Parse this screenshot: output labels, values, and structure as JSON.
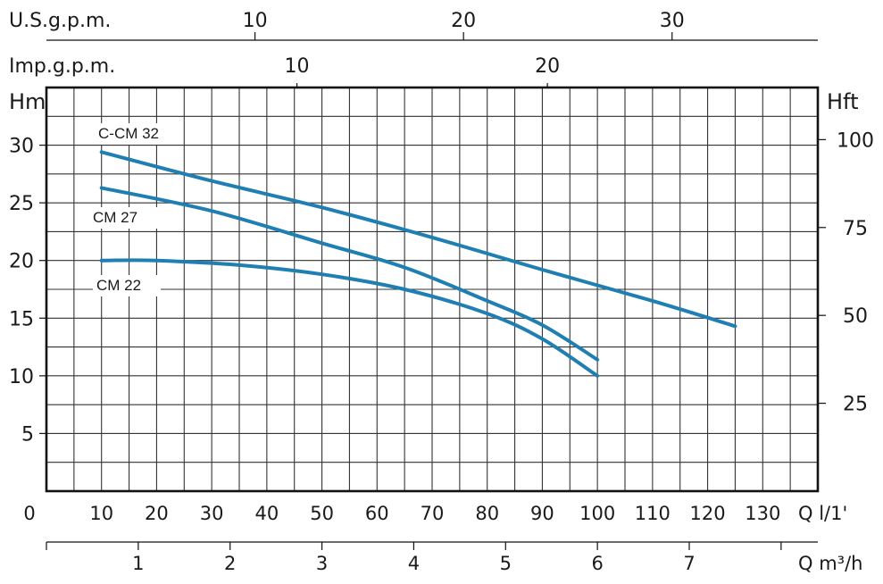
{
  "chart_data": {
    "type": "line",
    "x_flow_lpm": {
      "unit_label": "Q l/1'",
      "ticks": [
        "0",
        "10",
        "20",
        "30",
        "40",
        "50",
        "60",
        "70",
        "80",
        "90",
        "100",
        "110",
        "120",
        "130"
      ],
      "range": [
        0,
        140
      ]
    },
    "x_flow_m3h": {
      "unit_label": "Q m³/h",
      "ticks": [
        "1",
        "2",
        "3",
        "4",
        "5",
        "6",
        "7"
      ]
    },
    "x_us_gpm": {
      "label": "U.S.g.p.m.",
      "ticks": [
        "10",
        "20",
        "30"
      ]
    },
    "x_imp_gpm": {
      "label": "Imp.g.p.m.",
      "ticks": [
        "10",
        "20"
      ]
    },
    "y_head_m": {
      "label": "Hm",
      "ticks": [
        "5",
        "10",
        "15",
        "20",
        "25",
        "30"
      ],
      "range": [
        0,
        35
      ]
    },
    "y_head_ft": {
      "label": "Hft",
      "ticks": [
        "25",
        "50",
        "75",
        "100"
      ]
    },
    "grid": true,
    "series": [
      {
        "name": "C-CM 32",
        "color": "#1f7fb3",
        "points": [
          [
            10,
            29.4
          ],
          [
            30,
            26.9
          ],
          [
            50,
            24.6
          ],
          [
            70,
            22.0
          ],
          [
            90,
            19.2
          ],
          [
            110,
            16.5
          ],
          [
            125,
            14.3
          ]
        ]
      },
      {
        "name": "CM 27",
        "color": "#1f7fb3",
        "points": [
          [
            10,
            26.3
          ],
          [
            30,
            24.3
          ],
          [
            50,
            21.5
          ],
          [
            65,
            19.4
          ],
          [
            80,
            16.5
          ],
          [
            90,
            14.4
          ],
          [
            100,
            11.4
          ]
        ]
      },
      {
        "name": "CM 22",
        "color": "#1f7fb3",
        "points": [
          [
            10,
            20.0
          ],
          [
            20,
            20.0
          ],
          [
            35,
            19.6
          ],
          [
            50,
            18.8
          ],
          [
            65,
            17.5
          ],
          [
            80,
            15.4
          ],
          [
            90,
            13.2
          ],
          [
            100,
            10.0
          ]
        ]
      }
    ]
  }
}
